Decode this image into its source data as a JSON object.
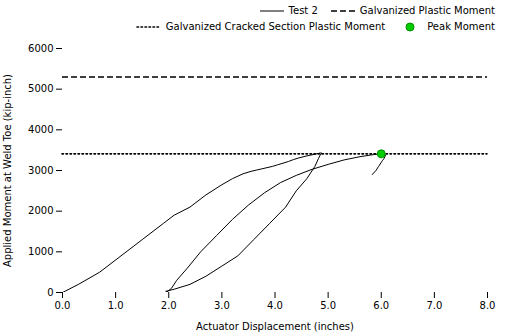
{
  "chart_data": {
    "type": "line",
    "xlabel": "Actuator Displacement (inches)",
    "ylabel": "Applied Moment at Weld Toe (kip-inch)",
    "xlim": [
      0.0,
      8.0
    ],
    "ylim": [
      0,
      6000
    ],
    "xticks": [
      {
        "value": 0.0,
        "label": "0.0"
      },
      {
        "value": 1.0,
        "label": "1.0"
      },
      {
        "value": 2.0,
        "label": "2.0"
      },
      {
        "value": 3.0,
        "label": "3.0"
      },
      {
        "value": 4.0,
        "label": "4.0"
      },
      {
        "value": 5.0,
        "label": "5.0"
      },
      {
        "value": 6.0,
        "label": "6.0"
      },
      {
        "value": 7.0,
        "label": "7.0"
      },
      {
        "value": 8.0,
        "label": "8.0"
      }
    ],
    "yticks": [
      0,
      1000,
      2000,
      3000,
      4000,
      5000,
      6000
    ],
    "grid": false,
    "legend": "upper right",
    "series": [
      {
        "name": "Test 2",
        "type": "line",
        "color": "#000000",
        "line_style": "solid",
        "x": [
          0.0,
          0.3,
          0.7,
          1.1,
          1.5,
          1.9,
          2.1,
          2.4,
          2.7,
          3.0,
          3.2,
          3.4,
          3.55,
          3.65,
          3.75,
          3.85,
          3.95,
          4.05,
          4.15,
          4.25,
          4.35,
          4.45,
          4.6,
          4.75,
          4.82,
          4.85,
          4.88,
          4.87,
          4.85,
          4.82,
          4.75,
          4.6,
          4.4,
          4.2,
          3.9,
          3.6,
          3.3,
          3.0,
          2.7,
          2.4,
          2.1,
          1.95
        ],
        "values": [
          0,
          200,
          500,
          900,
          1300,
          1700,
          1900,
          2100,
          2400,
          2650,
          2800,
          2920,
          2980,
          3010,
          3040,
          3070,
          3100,
          3140,
          3180,
          3220,
          3270,
          3310,
          3360,
          3400,
          3420,
          3430,
          3430,
          3410,
          3380,
          3300,
          3100,
          2800,
          2500,
          2100,
          1700,
          1300,
          900,
          650,
          400,
          200,
          80,
          30
        ]
      },
      {
        "type": "line",
        "color": "#000000",
        "line_style": "solid",
        "x": [
          1.95,
          1.97,
          2.0,
          2.05,
          2.15,
          2.35,
          2.6,
          2.9,
          3.2,
          3.5,
          3.8,
          4.1,
          4.4,
          4.7,
          5.0,
          5.3,
          5.6,
          5.85,
          6.0,
          6.05,
          6.08,
          6.07,
          6.05,
          6.02,
          6.0,
          5.95,
          5.9,
          5.83
        ],
        "values": [
          30,
          20,
          50,
          100,
          300,
          600,
          1000,
          1400,
          1800,
          2150,
          2450,
          2700,
          2880,
          3030,
          3150,
          3260,
          3340,
          3390,
          3410,
          3400,
          3380,
          3340,
          3290,
          3240,
          3200,
          3100,
          3000,
          2900
        ]
      },
      {
        "name": "Galvanized Plastic Moment",
        "type": "hline",
        "color": "#000000",
        "line_style": "dashed",
        "values": [
          5300
        ]
      },
      {
        "name": "Galvanized Cracked Section Plastic Moment",
        "type": "hline",
        "color": "#000000",
        "line_style": "dotted",
        "values": [
          3410
        ]
      },
      {
        "name": "Peak Moment",
        "type": "scatter",
        "color": "#00cc00",
        "marker": "circle",
        "x": [
          6.0
        ],
        "values": [
          3410
        ]
      }
    ]
  }
}
